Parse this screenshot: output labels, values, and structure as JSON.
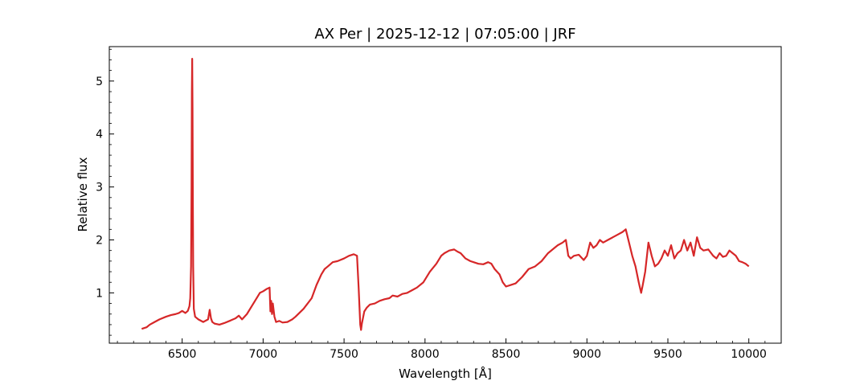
{
  "chart_data": {
    "type": "line",
    "title": "AX Per | 2025-12-12 | 07:05:00 | JRF",
    "xlabel": "Wavelength [Å]",
    "ylabel": "Relative flux",
    "xlim": [
      6050,
      10200
    ],
    "ylim": [
      0.05,
      5.65
    ],
    "xticks": [
      6500,
      7000,
      7500,
      8000,
      8500,
      9000,
      9500,
      10000
    ],
    "xtick_labels": [
      "6500",
      "7000",
      "7500",
      "8000",
      "8500",
      "9000",
      "9500",
      "10000"
    ],
    "yticks": [
      1,
      2,
      3,
      4,
      5
    ],
    "ytick_labels": [
      "1",
      "2",
      "3",
      "4",
      "5"
    ],
    "grid": false,
    "color": "#d62728",
    "series": [
      {
        "x": [
          6250,
          6280,
          6300,
          6330,
          6360,
          6400,
          6430,
          6460,
          6480,
          6500,
          6520,
          6535,
          6545,
          6550,
          6555,
          6558,
          6560,
          6562,
          6564,
          6566,
          6568,
          6572,
          6580,
          6600,
          6630,
          6660,
          6670,
          6678,
          6686,
          6700,
          6730,
          6760,
          6800,
          6830,
          6850,
          6870,
          6900,
          6950,
          6980,
          7000,
          7020,
          7040,
          7045,
          7050,
          7055,
          7060,
          7070,
          7080,
          7100,
          7120,
          7150,
          7180,
          7200,
          7250,
          7300,
          7330,
          7360,
          7380,
          7400,
          7430,
          7460,
          7500,
          7530,
          7560,
          7580,
          7590,
          7600,
          7605,
          7610,
          7625,
          7640,
          7660,
          7690,
          7720,
          7750,
          7780,
          7800,
          7830,
          7860,
          7890,
          7920,
          7950,
          7990,
          8030,
          8070,
          8100,
          8120,
          8150,
          8180,
          8200,
          8220,
          8250,
          8280,
          8300,
          8330,
          8360,
          8390,
          8410,
          8430,
          8460,
          8480,
          8500,
          8530,
          8560,
          8600,
          8640,
          8680,
          8720,
          8760,
          8800,
          8820,
          8850,
          8870,
          8885,
          8900,
          8920,
          8950,
          8980,
          9000,
          9020,
          9040,
          9060,
          9080,
          9100,
          9130,
          9160,
          9190,
          9220,
          9240,
          9260,
          9280,
          9300,
          9320,
          9335,
          9345,
          9360,
          9380,
          9400,
          9420,
          9440,
          9460,
          9480,
          9500,
          9520,
          9540,
          9560,
          9580,
          9600,
          9620,
          9640,
          9660,
          9680,
          9700,
          9720,
          9750,
          9780,
          9800,
          9820,
          9840,
          9860,
          9880,
          9900,
          9920,
          9940,
          9960,
          9980,
          10000
        ],
        "y": [
          0.32,
          0.35,
          0.4,
          0.45,
          0.5,
          0.55,
          0.58,
          0.6,
          0.62,
          0.66,
          0.62,
          0.66,
          0.75,
          0.9,
          1.5,
          3.0,
          4.8,
          5.42,
          4.5,
          2.8,
          1.5,
          0.7,
          0.55,
          0.5,
          0.45,
          0.5,
          0.68,
          0.52,
          0.45,
          0.42,
          0.4,
          0.43,
          0.48,
          0.52,
          0.57,
          0.5,
          0.6,
          0.85,
          1.0,
          1.03,
          1.07,
          1.1,
          0.65,
          0.85,
          0.6,
          0.8,
          0.55,
          0.45,
          0.47,
          0.44,
          0.45,
          0.5,
          0.55,
          0.7,
          0.9,
          1.15,
          1.35,
          1.45,
          1.5,
          1.58,
          1.6,
          1.65,
          1.7,
          1.73,
          1.7,
          1.1,
          0.4,
          0.3,
          0.42,
          0.65,
          0.72,
          0.78,
          0.8,
          0.85,
          0.88,
          0.9,
          0.95,
          0.93,
          0.98,
          1.0,
          1.05,
          1.1,
          1.2,
          1.4,
          1.55,
          1.7,
          1.75,
          1.8,
          1.82,
          1.78,
          1.75,
          1.65,
          1.6,
          1.58,
          1.55,
          1.54,
          1.58,
          1.55,
          1.45,
          1.35,
          1.2,
          1.12,
          1.15,
          1.18,
          1.3,
          1.45,
          1.5,
          1.6,
          1.75,
          1.85,
          1.9,
          1.95,
          2.0,
          1.7,
          1.65,
          1.7,
          1.72,
          1.62,
          1.7,
          1.95,
          1.85,
          1.9,
          2.0,
          1.95,
          2.0,
          2.05,
          2.1,
          2.15,
          2.2,
          1.95,
          1.7,
          1.5,
          1.2,
          1.0,
          1.15,
          1.4,
          1.95,
          1.7,
          1.5,
          1.55,
          1.65,
          1.8,
          1.7,
          1.9,
          1.65,
          1.75,
          1.8,
          2.0,
          1.8,
          1.95,
          1.7,
          2.05,
          1.85,
          1.8,
          1.82,
          1.7,
          1.65,
          1.75,
          1.68,
          1.7,
          1.8,
          1.75,
          1.7,
          1.6,
          1.58,
          1.55,
          1.5
        ]
      }
    ]
  }
}
